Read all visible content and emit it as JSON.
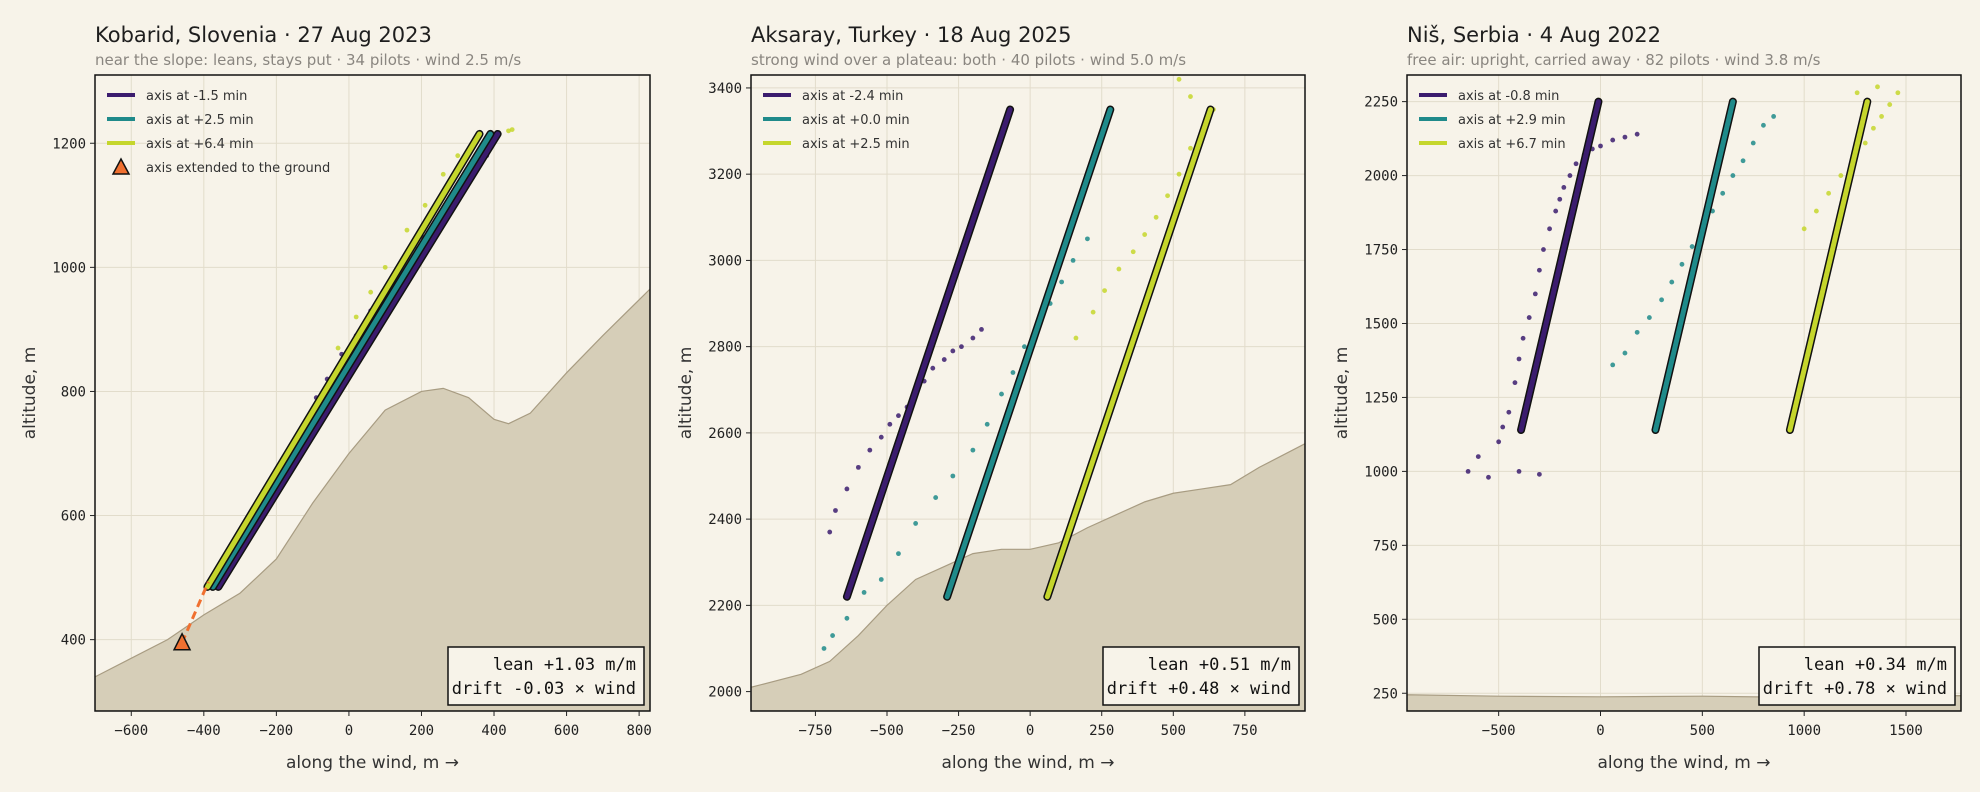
{
  "chart_data": [
    {
      "type": "scatter",
      "title": "Kobarid, Slovenia · 27 Aug 2023",
      "subtitle": "near the slope: leans, stays put · 34 pilots · wind 2.5 m/s",
      "xlabel": "along the wind, m →",
      "ylabel": "altitude, m",
      "xlim": [
        -700,
        830
      ],
      "ylim": [
        285,
        1310
      ],
      "xticks": [
        -600,
        -400,
        -200,
        0,
        200,
        400,
        600,
        800
      ],
      "yticks": [
        400,
        600,
        800,
        1000,
        1200
      ],
      "grid": true,
      "legend": "top-left",
      "terrain": [
        [
          -700,
          340
        ],
        [
          -500,
          400
        ],
        [
          -400,
          440
        ],
        [
          -300,
          475
        ],
        [
          -200,
          530
        ],
        [
          -100,
          620
        ],
        [
          0,
          700
        ],
        [
          100,
          770
        ],
        [
          200,
          800
        ],
        [
          260,
          805
        ],
        [
          330,
          790
        ],
        [
          400,
          755
        ],
        [
          440,
          748
        ],
        [
          500,
          765
        ],
        [
          600,
          830
        ],
        [
          700,
          890
        ],
        [
          830,
          965
        ]
      ],
      "series": [
        {
          "name": "axis at -1.5 min",
          "color": "#3b1c6e",
          "axis": [
            [
              -360,
              485
            ],
            [
              410,
              1215
            ]
          ],
          "points": [
            [
              -350,
              500
            ],
            [
              -320,
              540
            ],
            [
              -290,
              570
            ],
            [
              -250,
              610
            ],
            [
              -200,
              650
            ],
            [
              -160,
              690
            ],
            [
              -120,
              740
            ],
            [
              -90,
              790
            ],
            [
              -60,
              820
            ],
            [
              -20,
              860
            ],
            [
              20,
              890
            ],
            [
              60,
              930
            ],
            [
              100,
              960
            ],
            [
              150,
              1010
            ],
            [
              200,
              1050
            ],
            [
              250,
              1080
            ],
            [
              290,
              1100
            ],
            [
              330,
              1140
            ],
            [
              380,
              1180
            ]
          ]
        },
        {
          "name": "axis at +2.5 min",
          "color": "#1f8a8a",
          "axis": [
            [
              -375,
              485
            ],
            [
              390,
              1215
            ]
          ],
          "points": [
            [
              -340,
              510
            ],
            [
              -270,
              580
            ],
            [
              -210,
              640
            ],
            [
              -150,
              700
            ],
            [
              -100,
              760
            ],
            [
              -40,
              820
            ],
            [
              10,
              870
            ],
            [
              70,
              920
            ],
            [
              130,
              975
            ],
            [
              190,
              1030
            ],
            [
              250,
              1075
            ],
            [
              310,
              1120
            ],
            [
              360,
              1170
            ]
          ]
        },
        {
          "name": "axis at +6.4 min",
          "color": "#c5d62c",
          "axis": [
            [
              -390,
              485
            ],
            [
              360,
              1215
            ]
          ],
          "points": [
            [
              -280,
              560
            ],
            [
              -200,
              640
            ],
            [
              -120,
              720
            ],
            [
              -60,
              800
            ],
            [
              -30,
              870
            ],
            [
              20,
              920
            ],
            [
              60,
              960
            ],
            [
              100,
              1000
            ],
            [
              160,
              1060
            ],
            [
              210,
              1100
            ],
            [
              260,
              1150
            ],
            [
              300,
              1180
            ],
            [
              440,
              1220
            ],
            [
              450,
              1222
            ]
          ]
        },
        {
          "name": "axis extended to the ground",
          "color": "#f07030",
          "points": [
            [
              -460,
              395
            ]
          ]
        }
      ],
      "box": {
        "lean": "lean +1.03 m/m",
        "drift": "drift -0.03 × wind"
      }
    },
    {
      "type": "scatter",
      "title": "Aksaray, Turkey · 18 Aug 2025",
      "subtitle": "strong wind over a plateau: both · 40 pilots · wind 5.0 m/s",
      "xlabel": "along the wind, m →",
      "ylabel": "altitude, m",
      "xlim": [
        -975,
        960
      ],
      "ylim": [
        1955,
        3430
      ],
      "xticks": [
        -750,
        -500,
        -250,
        0,
        250,
        500,
        750
      ],
      "yticks": [
        2000,
        2200,
        2400,
        2600,
        2800,
        3000,
        3200,
        3400
      ],
      "grid": true,
      "legend": "top-left",
      "terrain": [
        [
          -975,
          2010
        ],
        [
          -800,
          2040
        ],
        [
          -700,
          2070
        ],
        [
          -600,
          2130
        ],
        [
          -500,
          2200
        ],
        [
          -400,
          2260
        ],
        [
          -300,
          2290
        ],
        [
          -200,
          2320
        ],
        [
          -100,
          2330
        ],
        [
          0,
          2330
        ],
        [
          100,
          2345
        ],
        [
          200,
          2380
        ],
        [
          300,
          2410
        ],
        [
          400,
          2440
        ],
        [
          500,
          2460
        ],
        [
          600,
          2470
        ],
        [
          700,
          2480
        ],
        [
          800,
          2520
        ],
        [
          960,
          2575
        ]
      ],
      "series": [
        {
          "name": "axis at -2.4 min",
          "color": "#3b1c6e",
          "axis": [
            [
              -640,
              2220
            ],
            [
              -70,
              3350
            ]
          ],
          "points": [
            [
              -700,
              2370
            ],
            [
              -680,
              2420
            ],
            [
              -640,
              2470
            ],
            [
              -600,
              2520
            ],
            [
              -560,
              2560
            ],
            [
              -520,
              2590
            ],
            [
              -490,
              2620
            ],
            [
              -460,
              2640
            ],
            [
              -430,
              2660
            ],
            [
              -400,
              2690
            ],
            [
              -370,
              2720
            ],
            [
              -340,
              2750
            ],
            [
              -300,
              2770
            ],
            [
              -270,
              2790
            ],
            [
              -240,
              2800
            ],
            [
              -200,
              2820
            ],
            [
              -170,
              2840
            ]
          ]
        },
        {
          "name": "axis at +0.0 min",
          "color": "#1f8a8a",
          "axis": [
            [
              -290,
              2220
            ],
            [
              280,
              3350
            ]
          ],
          "points": [
            [
              -720,
              2100
            ],
            [
              -690,
              2130
            ],
            [
              -640,
              2170
            ],
            [
              -580,
              2230
            ],
            [
              -520,
              2260
            ],
            [
              -460,
              2320
            ],
            [
              -400,
              2390
            ],
            [
              -330,
              2450
            ],
            [
              -270,
              2500
            ],
            [
              -200,
              2560
            ],
            [
              -150,
              2620
            ],
            [
              -100,
              2690
            ],
            [
              -60,
              2740
            ],
            [
              -20,
              2800
            ],
            [
              30,
              2860
            ],
            [
              70,
              2900
            ],
            [
              110,
              2950
            ],
            [
              150,
              3000
            ],
            [
              200,
              3050
            ]
          ]
        },
        {
          "name": "axis at +2.5 min",
          "color": "#c5d62c",
          "axis": [
            [
              60,
              2220
            ],
            [
              630,
              3350
            ]
          ],
          "points": [
            [
              160,
              2820
            ],
            [
              220,
              2880
            ],
            [
              260,
              2930
            ],
            [
              310,
              2980
            ],
            [
              360,
              3020
            ],
            [
              400,
              3060
            ],
            [
              440,
              3100
            ],
            [
              480,
              3150
            ],
            [
              520,
              3200
            ],
            [
              560,
              3260
            ],
            [
              600,
              3300
            ],
            [
              640,
              3350
            ],
            [
              560,
              3380
            ],
            [
              520,
              3420
            ]
          ]
        }
      ],
      "box": {
        "lean": "lean +0.51 m/m",
        "drift": "drift +0.48 × wind"
      }
    },
    {
      "type": "scatter",
      "title": "Niš, Serbia · 4 Aug 2022",
      "subtitle": "free air: upright, carried away · 82 pilots · wind 3.8 m/s",
      "xlabel": "along the wind, m →",
      "ylabel": "altitude, m",
      "xlim": [
        -950,
        1770
      ],
      "ylim": [
        190,
        2340
      ],
      "xticks": [
        -500,
        0,
        500,
        1000,
        1500
      ],
      "yticks": [
        250,
        500,
        750,
        1000,
        1250,
        1500,
        1750,
        2000,
        2250
      ],
      "grid": true,
      "legend": "top-left",
      "terrain": [
        [
          -950,
          245
        ],
        [
          -500,
          240
        ],
        [
          0,
          238
        ],
        [
          500,
          240
        ],
        [
          1000,
          236
        ],
        [
          1500,
          240
        ],
        [
          1770,
          242
        ]
      ],
      "series": [
        {
          "name": "axis at -0.8 min",
          "color": "#3b1c6e",
          "axis": [
            [
              -390,
              1140
            ],
            [
              -10,
              2250
            ]
          ],
          "points": [
            [
              -650,
              1000
            ],
            [
              -600,
              1050
            ],
            [
              -550,
              980
            ],
            [
              -500,
              1100
            ],
            [
              -480,
              1150
            ],
            [
              -450,
              1200
            ],
            [
              -420,
              1300
            ],
            [
              -400,
              1380
            ],
            [
              -380,
              1450
            ],
            [
              -350,
              1520
            ],
            [
              -320,
              1600
            ],
            [
              -300,
              1680
            ],
            [
              -280,
              1750
            ],
            [
              -250,
              1820
            ],
            [
              -220,
              1880
            ],
            [
              -200,
              1920
            ],
            [
              -180,
              1960
            ],
            [
              -150,
              2000
            ],
            [
              -120,
              2040
            ],
            [
              -80,
              2070
            ],
            [
              -40,
              2090
            ],
            [
              0,
              2100
            ],
            [
              60,
              2120
            ],
            [
              120,
              2130
            ],
            [
              180,
              2140
            ],
            [
              -400,
              1000
            ],
            [
              -300,
              990
            ]
          ]
        },
        {
          "name": "axis at +2.9 min",
          "color": "#1f8a8a",
          "axis": [
            [
              270,
              1140
            ],
            [
              650,
              2250
            ]
          ],
          "points": [
            [
              60,
              1360
            ],
            [
              120,
              1400
            ],
            [
              180,
              1470
            ],
            [
              240,
              1520
            ],
            [
              300,
              1580
            ],
            [
              350,
              1640
            ],
            [
              400,
              1700
            ],
            [
              450,
              1760
            ],
            [
              500,
              1820
            ],
            [
              550,
              1880
            ],
            [
              600,
              1940
            ],
            [
              650,
              2000
            ],
            [
              700,
              2050
            ],
            [
              750,
              2110
            ],
            [
              800,
              2170
            ],
            [
              850,
              2200
            ]
          ]
        },
        {
          "name": "axis at +6.7 min",
          "color": "#c5d62c",
          "axis": [
            [
              930,
              1140
            ],
            [
              1310,
              2250
            ]
          ],
          "points": [
            [
              1000,
              1820
            ],
            [
              1060,
              1880
            ],
            [
              1120,
              1940
            ],
            [
              1180,
              2000
            ],
            [
              1240,
              2060
            ],
            [
              1300,
              2110
            ],
            [
              1340,
              2160
            ],
            [
              1380,
              2200
            ],
            [
              1420,
              2240
            ],
            [
              1460,
              2280
            ],
            [
              1360,
              2300
            ],
            [
              1260,
              2280
            ]
          ]
        }
      ],
      "box": {
        "lean": "lean +0.34 m/m",
        "drift": "drift +0.78 × wind"
      }
    }
  ]
}
